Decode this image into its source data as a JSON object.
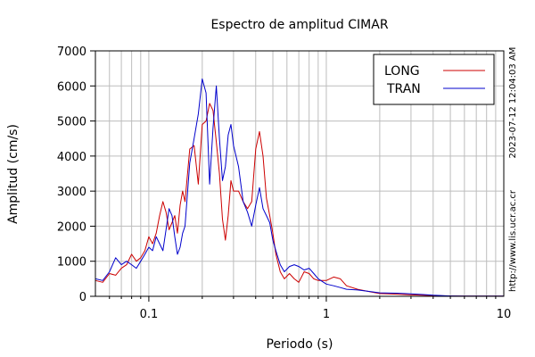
{
  "chart_data": {
    "type": "line",
    "title": "Espectro de amplitud CIMAR",
    "xlabel": "Periodo (s)",
    "ylabel": "Amplitud (cm/s)",
    "x_scale": "log",
    "xlim": [
      0.05,
      10
    ],
    "ylim": [
      0,
      7000
    ],
    "x_ticks": [
      {
        "value": 0.1,
        "label": "0.1"
      },
      {
        "value": 1,
        "label": "1"
      },
      {
        "value": 10,
        "label": "10"
      }
    ],
    "y_ticks": [
      {
        "value": 0,
        "label": "0"
      },
      {
        "value": 1000,
        "label": "1000"
      },
      {
        "value": 2000,
        "label": "2000"
      },
      {
        "value": 3000,
        "label": "3000"
      },
      {
        "value": 4000,
        "label": "4000"
      },
      {
        "value": 5000,
        "label": "5000"
      },
      {
        "value": 6000,
        "label": "6000"
      },
      {
        "value": 7000,
        "label": "7000"
      }
    ],
    "grid": true,
    "legend_position": "top-right",
    "timestamp": "2023-07-12 12:04:03 AM",
    "source": "http://www.lis.ucr.ac.cr",
    "series": [
      {
        "name": "LONG",
        "color": "#cc0000",
        "x": [
          0.05,
          0.055,
          0.06,
          0.065,
          0.07,
          0.075,
          0.08,
          0.085,
          0.09,
          0.095,
          0.1,
          0.105,
          0.11,
          0.115,
          0.12,
          0.125,
          0.13,
          0.135,
          0.14,
          0.145,
          0.15,
          0.155,
          0.16,
          0.17,
          0.18,
          0.19,
          0.2,
          0.21,
          0.22,
          0.23,
          0.24,
          0.25,
          0.26,
          0.27,
          0.28,
          0.29,
          0.3,
          0.32,
          0.34,
          0.36,
          0.38,
          0.4,
          0.42,
          0.44,
          0.46,
          0.48,
          0.5,
          0.52,
          0.55,
          0.58,
          0.62,
          0.66,
          0.7,
          0.75,
          0.8,
          0.85,
          0.9,
          1.0,
          1.1,
          1.2,
          1.3,
          1.5,
          1.8,
          2.0,
          2.5,
          3.0,
          3.5,
          4.0,
          5.0,
          6.0,
          8.0,
          10.0
        ],
        "y": [
          450,
          400,
          650,
          600,
          800,
          900,
          1200,
          1000,
          1100,
          1300,
          1700,
          1500,
          1800,
          2300,
          2700,
          2400,
          1900,
          2100,
          2300,
          1800,
          2600,
          3000,
          2700,
          4200,
          4300,
          3200,
          4900,
          5000,
          5500,
          5300,
          4400,
          3500,
          2200,
          1600,
          2300,
          3300,
          3000,
          3000,
          2700,
          2500,
          2700,
          4200,
          4700,
          4000,
          2800,
          2300,
          1800,
          1200,
          700,
          500,
          650,
          500,
          400,
          700,
          650,
          500,
          450,
          450,
          550,
          500,
          300,
          200,
          120,
          80,
          60,
          40,
          30,
          20,
          10,
          5,
          5,
          5
        ]
      },
      {
        "name": "TRAN",
        "color": "#0000cc",
        "x": [
          0.05,
          0.055,
          0.06,
          0.065,
          0.07,
          0.075,
          0.08,
          0.085,
          0.09,
          0.095,
          0.1,
          0.105,
          0.11,
          0.115,
          0.12,
          0.125,
          0.13,
          0.135,
          0.14,
          0.145,
          0.15,
          0.155,
          0.16,
          0.17,
          0.18,
          0.19,
          0.2,
          0.21,
          0.22,
          0.23,
          0.24,
          0.25,
          0.26,
          0.27,
          0.28,
          0.29,
          0.3,
          0.32,
          0.34,
          0.36,
          0.38,
          0.4,
          0.42,
          0.44,
          0.46,
          0.48,
          0.5,
          0.52,
          0.55,
          0.58,
          0.62,
          0.66,
          0.7,
          0.75,
          0.8,
          0.85,
          0.9,
          1.0,
          1.1,
          1.2,
          1.3,
          1.5,
          1.8,
          2.0,
          2.5,
          3.0,
          3.5,
          4.0,
          5.0,
          6.0,
          8.0,
          10.0
        ],
        "y": [
          500,
          450,
          700,
          1100,
          900,
          1000,
          900,
          800,
          1000,
          1200,
          1400,
          1300,
          1700,
          1500,
          1300,
          1900,
          2500,
          2300,
          1700,
          1200,
          1400,
          1800,
          2000,
          3800,
          4500,
          5200,
          6200,
          5800,
          3200,
          4800,
          6000,
          4500,
          3300,
          3700,
          4600,
          4900,
          4300,
          3700,
          2700,
          2400,
          2000,
          2600,
          3100,
          2500,
          2300,
          2100,
          1600,
          1300,
          900,
          700,
          850,
          900,
          850,
          750,
          800,
          650,
          500,
          350,
          300,
          250,
          200,
          180,
          130,
          100,
          90,
          70,
          50,
          30,
          10,
          5,
          5,
          5
        ]
      }
    ]
  }
}
